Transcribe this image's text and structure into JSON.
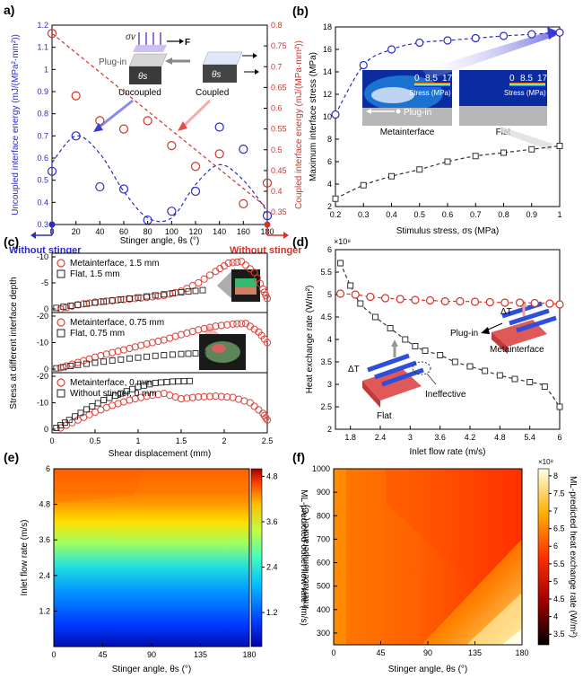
{
  "chart_data": [
    {
      "panel": "a)",
      "type": "scatter",
      "xlabel": "Stinger angle, θs (°)",
      "ylabel_left": "Uncoupled interface energy (mJ/(MPa²·mm²))",
      "ylabel_right": "Coupled interface energy (mJ/(MPa·mm²))",
      "xlim": [
        0,
        180
      ],
      "ylim_left": [
        0.3,
        1.2
      ],
      "ylim_right": [
        0.32,
        0.8
      ],
      "xticks": [
        "0",
        "20",
        "40",
        "60",
        "80",
        "100",
        "120",
        "140",
        "160",
        "180"
      ],
      "yticks_left": [
        "0.3",
        "0.4",
        "0.5",
        "0.6",
        "0.7",
        "0.8",
        "0.9",
        "1",
        "1.1",
        "1.2"
      ],
      "yticks_right": [
        "0.35",
        "0.4",
        "0.45",
        "0.5",
        "0.55",
        "0.6",
        "0.65",
        "0.7",
        "0.75",
        "0.8"
      ],
      "series": [
        {
          "axis": "left",
          "color": "#2b2bc8",
          "x": [
            0,
            20,
            40,
            60,
            80,
            100,
            120,
            140,
            160,
            180
          ],
          "y": [
            0.54,
            0.7,
            0.47,
            0.46,
            0.32,
            0.36,
            0.45,
            0.74,
            0.64,
            0.34
          ]
        },
        {
          "axis": "right",
          "color": "#d0342c",
          "x": [
            0,
            20,
            40,
            60,
            80,
            100,
            120,
            140,
            160,
            180
          ],
          "y": [
            0.78,
            0.63,
            0.57,
            0.55,
            0.57,
            0.51,
            0.46,
            0.49,
            0.37,
            0.42
          ]
        }
      ],
      "annotations": {
        "plug_in": "Plug-in",
        "uncoupled": "Uncoupled",
        "coupled": "Coupled",
        "force": "F",
        "sigma": "σv",
        "theta": "θs",
        "left_end": "Without stinger",
        "right_end": "Without stinger"
      }
    },
    {
      "panel": "(b)",
      "type": "line",
      "xlabel": "Stimulus stress, σs (MPa)",
      "ylabel": "Maximum interface stress (MPa)",
      "xlim": [
        0.2,
        1
      ],
      "ylim": [
        2,
        18
      ],
      "xticks": [
        "0.2",
        "0.3",
        "0.4",
        "0.5",
        "0.6",
        "0.7",
        "0.8",
        "0.9",
        "1"
      ],
      "yticks": [
        "2",
        "4",
        "6",
        "8",
        "10",
        "12",
        "14",
        "16",
        "18"
      ],
      "series": [
        {
          "name": "Metainterface",
          "color": "#2b2bc8",
          "x": [
            0.2,
            0.3,
            0.4,
            0.5,
            0.6,
            0.7,
            0.8,
            0.9,
            1.0
          ],
          "y": [
            10.2,
            14.6,
            16.0,
            16.6,
            16.8,
            17.0,
            17.2,
            17.35,
            17.5
          ]
        },
        {
          "name": "Flat",
          "color": "#333333",
          "x": [
            0.2,
            0.3,
            0.4,
            0.5,
            0.6,
            0.7,
            0.8,
            0.9,
            1.0
          ],
          "y": [
            2.7,
            3.9,
            4.7,
            5.3,
            6.0,
            6.5,
            6.8,
            7.1,
            7.4
          ]
        }
      ],
      "inset": {
        "scale": [
          "0",
          "8.5",
          "17"
        ],
        "label": "Stress (MPa)",
        "left_caption": "Metainterface",
        "right_caption": "Flat",
        "plug_in": "Plug-in"
      }
    },
    {
      "panel": "(c)",
      "type": "scatter",
      "xlabel": "Shear displacement (mm)",
      "ylabel": "Stress at different interface depth",
      "xlim": [
        0,
        2.5
      ],
      "xticks": [
        "0",
        "0.5",
        "1",
        "1.5",
        "2",
        "2.5"
      ],
      "yticks": [
        "0",
        "-5",
        "-10",
        "-15",
        "-20"
      ],
      "subplots": [
        {
          "series": [
            {
              "name": "Metainterface, 1.5 mm",
              "marker": "circle",
              "x": [
                0.1,
                0.3,
                0.5,
                0.7,
                0.9,
                1.1,
                1.3,
                1.5,
                1.7,
                1.9,
                2.05,
                2.2,
                2.35,
                2.45,
                2.5
              ],
              "y": [
                0,
                -0.8,
                -1.3,
                -1.6,
                -1.9,
                -2.2,
                -2.6,
                -3.4,
                -5.0,
                -7.2,
                -8.8,
                -9.1,
                -7.0,
                -3.8,
                -2.0
              ]
            },
            {
              "name": "Flat, 1.5 mm",
              "marker": "square",
              "x": [
                0.05,
                0.3,
                0.6,
                0.9,
                1.2,
                1.5,
                1.75
              ],
              "y": [
                -0.2,
                -0.8,
                -1.4,
                -2.0,
                -2.6,
                -3.2,
                -3.6
              ]
            }
          ]
        },
        {
          "series": [
            {
              "name": "Metainterface, 0.75 mm",
              "marker": "circle",
              "x": [
                0.1,
                0.3,
                0.5,
                0.7,
                0.9,
                1.1,
                1.3,
                1.5,
                1.7,
                1.9,
                2.1,
                2.25,
                2.4,
                2.5
              ],
              "y": [
                -0.5,
                -2.5,
                -4.5,
                -6.2,
                -7.8,
                -9.5,
                -11.0,
                -13.0,
                -14.8,
                -16.2,
                -17.0,
                -17.2,
                -14.0,
                -10.0
              ]
            },
            {
              "name": "Flat, 0.75 mm",
              "marker": "square",
              "x": [
                0.05,
                0.3,
                0.6,
                0.9,
                1.2,
                1.5,
                1.75
              ],
              "y": [
                -0.3,
                -1.6,
                -2.8,
                -4.0,
                -5.0,
                -5.7,
                -6.0
              ]
            }
          ]
        },
        {
          "series": [
            {
              "name": "Metainterface, 0 mm",
              "marker": "circle",
              "x": [
                0.1,
                0.3,
                0.5,
                0.7,
                0.9,
                1.1,
                1.3,
                1.5,
                1.7,
                1.9,
                2.1,
                2.3,
                2.45,
                2.5
              ],
              "y": [
                -0.5,
                -3.5,
                -6.5,
                -9.0,
                -11.0,
                -12.5,
                -13.5,
                -11.5,
                -12.2,
                -12.5,
                -12.0,
                -10.0,
                -6.0,
                -3.5
              ]
            },
            {
              "name": "Without stinger, 0 mm",
              "marker": "square",
              "x": [
                0.05,
                0.2,
                0.4,
                0.6,
                0.8,
                1.0,
                1.2,
                1.4,
                1.6
              ],
              "y": [
                -0.5,
                -3.5,
                -7.5,
                -11.0,
                -13.5,
                -16.0,
                -17.5,
                -18.0,
                -18.2
              ]
            }
          ]
        }
      ]
    },
    {
      "panel": "(d)",
      "type": "line",
      "xlabel": "Inlet flow rate (m/s)",
      "ylabel": "Heat exchange rate (W/m²)",
      "multiplier": "×10⁸",
      "xlim": [
        1.5,
        6
      ],
      "ylim": [
        2,
        6
      ],
      "xticks": [
        "1.8",
        "2.4",
        "3",
        "3.6",
        "4.2",
        "4.8",
        "5.4",
        "6"
      ],
      "yticks": [
        "2",
        "2.5",
        "3",
        "3.5",
        "4",
        "4.5",
        "5",
        "5.5",
        "6"
      ],
      "series": [
        {
          "name": "Metainterface",
          "color": "#d0342c",
          "x": [
            1.6,
            1.9,
            2.2,
            2.5,
            2.8,
            3.1,
            3.4,
            3.7,
            4.0,
            4.3,
            4.6,
            4.9,
            5.2,
            5.5,
            5.8,
            6.0
          ],
          "y": [
            5.02,
            5.0,
            4.95,
            4.92,
            4.9,
            4.88,
            4.87,
            4.85,
            4.85,
            4.84,
            4.83,
            4.82,
            4.82,
            4.81,
            4.8,
            4.78
          ]
        },
        {
          "name": "Flat",
          "color": "#333333",
          "x": [
            1.6,
            1.8,
            2.0,
            2.3,
            2.6,
            2.9,
            3.1,
            3.3,
            3.6,
            3.9,
            4.2,
            4.5,
            4.8,
            5.1,
            5.4,
            5.7,
            6.0
          ],
          "y": [
            5.7,
            5.2,
            4.8,
            4.5,
            4.25,
            4.0,
            3.85,
            3.75,
            3.65,
            3.5,
            3.4,
            3.3,
            3.2,
            3.12,
            3.05,
            2.95,
            2.5
          ]
        }
      ],
      "annotations": {
        "delta_t": "ΔT",
        "ineffective": "Ineffective",
        "plug_in": "Plug-in",
        "flat": "Flat",
        "metainterface": "Metainterface"
      }
    },
    {
      "panel": "(e)",
      "type": "heatmap",
      "xlabel": "Stinger angle, θs (°)",
      "ylabel": "Inlet flow rate (m/s)",
      "colorbar_label": "ML-predicted outlet flow rate (m/s)",
      "xticks": [
        "0",
        "45",
        "90",
        "135",
        "180"
      ],
      "yticks": [
        "1.2",
        "2.4",
        "3.6",
        "4.8",
        "6"
      ],
      "colorbar_ticks": [
        "1.2",
        "2.4",
        "3.6",
        "4.8"
      ],
      "colormap": "jet"
    },
    {
      "panel": "(f)",
      "type": "heatmap",
      "xlabel": "Stinger angle, θs (°)",
      "ylabel": "Interface temperature (°C)",
      "colorbar_label": "ML-predicted heat exchange rate (W/m²)",
      "colorbar_multiplier": "×10⁸",
      "xticks": [
        "0",
        "45",
        "90",
        "135",
        "180"
      ],
      "yticks": [
        "300",
        "400",
        "500",
        "600",
        "700",
        "800",
        "900",
        "1000"
      ],
      "colorbar_ticks": [
        "3.5",
        "4",
        "4.5",
        "5",
        "5.5",
        "6",
        "6.5",
        "7",
        "7.5",
        "8"
      ],
      "colormap": "hot"
    }
  ]
}
